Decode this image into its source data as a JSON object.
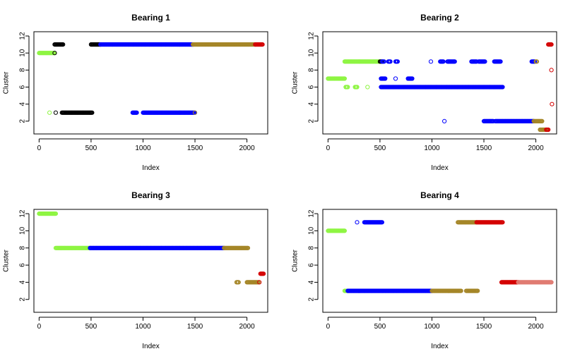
{
  "chart_data": [
    {
      "type": "scatter",
      "title": "Bearing 1",
      "xlabel": "Index",
      "ylabel": "Cluster",
      "xlim": [
        -50,
        2200
      ],
      "ylim": [
        0.5,
        12.5
      ],
      "xticks": [
        0,
        500,
        1000,
        1500,
        2000
      ],
      "yticks": [
        2,
        4,
        6,
        8,
        10,
        12
      ],
      "grid": false,
      "legend": "none",
      "runs": [
        {
          "color": "#8EF542",
          "y": 10,
          "x": [
            0,
            150
          ]
        },
        {
          "color": "#8EF542",
          "y": 3,
          "x": [
            100,
            100
          ]
        },
        {
          "color": "#000000",
          "y": 11,
          "x": [
            150,
            230
          ]
        },
        {
          "color": "#000000",
          "y": 10,
          "x": [
            150,
            150
          ]
        },
        {
          "color": "#000000",
          "y": 3,
          "x": [
            160,
            160
          ]
        },
        {
          "color": "#000000",
          "y": 3,
          "x": [
            220,
            510
          ]
        },
        {
          "color": "#000000",
          "y": 11,
          "x": [
            500,
            590
          ]
        },
        {
          "color": "#0000FF",
          "y": 11,
          "x": [
            590,
            1480
          ]
        },
        {
          "color": "#0000FF",
          "y": 3,
          "x": [
            900,
            940
          ]
        },
        {
          "color": "#0000FF",
          "y": 3,
          "x": [
            1000,
            1500
          ]
        },
        {
          "color": "#A58628",
          "y": 3,
          "x": [
            1500,
            1500
          ]
        },
        {
          "color": "#A58628",
          "y": 11,
          "x": [
            1480,
            2080
          ]
        },
        {
          "color": "#D40000",
          "y": 11,
          "x": [
            2080,
            2150
          ]
        }
      ]
    },
    {
      "type": "scatter",
      "title": "Bearing 2",
      "xlabel": "Index",
      "ylabel": "Cluster",
      "xlim": [
        -50,
        2200
      ],
      "ylim": [
        0.5,
        12.5
      ],
      "xticks": [
        0,
        500,
        1000,
        1500,
        2000
      ],
      "yticks": [
        2,
        4,
        6,
        8,
        10,
        12
      ],
      "grid": false,
      "legend": "none",
      "runs": [
        {
          "color": "#8EF542",
          "y": 7,
          "x": [
            0,
            160
          ]
        },
        {
          "color": "#8EF542",
          "y": 9,
          "x": [
            160,
            500
          ]
        },
        {
          "color": "#8EF542",
          "y": 6,
          "x": [
            170,
            190
          ]
        },
        {
          "color": "#8EF542",
          "y": 6,
          "x": [
            260,
            280
          ]
        },
        {
          "color": "#8EF542",
          "y": 6,
          "x": [
            380,
            380
          ]
        },
        {
          "color": "#000000",
          "y": 9,
          "x": [
            500,
            520
          ]
        },
        {
          "color": "#0000FF",
          "y": 9,
          "x": [
            520,
            540
          ]
        },
        {
          "color": "#0000FF",
          "y": 7,
          "x": [
            510,
            550
          ]
        },
        {
          "color": "#0000FF",
          "y": 6,
          "x": [
            510,
            1680
          ]
        },
        {
          "color": "#0000FF",
          "y": 9,
          "x": [
            580,
            600
          ]
        },
        {
          "color": "#0000FF",
          "y": 9,
          "x": [
            650,
            670
          ]
        },
        {
          "color": "#0000FF",
          "y": 7,
          "x": [
            650,
            650
          ]
        },
        {
          "color": "#0000FF",
          "y": 7,
          "x": [
            770,
            810
          ]
        },
        {
          "color": "#0000FF",
          "y": 9,
          "x": [
            990,
            990
          ]
        },
        {
          "color": "#0000FF",
          "y": 9,
          "x": [
            1080,
            1110
          ]
        },
        {
          "color": "#0000FF",
          "y": 9,
          "x": [
            1150,
            1220
          ]
        },
        {
          "color": "#0000FF",
          "y": 9,
          "x": [
            1380,
            1430
          ]
        },
        {
          "color": "#0000FF",
          "y": 9,
          "x": [
            1450,
            1510
          ]
        },
        {
          "color": "#0000FF",
          "y": 9,
          "x": [
            1600,
            1660
          ]
        },
        {
          "color": "#0000FF",
          "y": 2,
          "x": [
            1120,
            1120
          ]
        },
        {
          "color": "#0000FF",
          "y": 2,
          "x": [
            1500,
            1590
          ]
        },
        {
          "color": "#0000FF",
          "y": 2,
          "x": [
            1610,
            1980
          ]
        },
        {
          "color": "#0000FF",
          "y": 9,
          "x": [
            1960,
            1990
          ]
        },
        {
          "color": "#A58628",
          "y": 9,
          "x": [
            2000,
            2010
          ]
        },
        {
          "color": "#A58628",
          "y": 2,
          "x": [
            1980,
            2060
          ]
        },
        {
          "color": "#A58628",
          "y": 1,
          "x": [
            2040,
            2100
          ]
        },
        {
          "color": "#D40000",
          "y": 1,
          "x": [
            2100,
            2120
          ]
        },
        {
          "color": "#D40000",
          "y": 11,
          "x": [
            2120,
            2150
          ]
        },
        {
          "color": "#D40000",
          "y": 8,
          "x": [
            2150,
            2150
          ]
        },
        {
          "color": "#D40000",
          "y": 4,
          "x": [
            2155,
            2155
          ]
        }
      ]
    },
    {
      "type": "scatter",
      "title": "Bearing 3",
      "xlabel": "Index",
      "ylabel": "Cluster",
      "xlim": [
        -50,
        2200
      ],
      "ylim": [
        0.5,
        12.5
      ],
      "xticks": [
        0,
        500,
        1000,
        1500,
        2000
      ],
      "yticks": [
        2,
        4,
        6,
        8,
        10,
        12
      ],
      "grid": false,
      "legend": "none",
      "runs": [
        {
          "color": "#8EF542",
          "y": 12,
          "x": [
            0,
            160
          ]
        },
        {
          "color": "#8EF542",
          "y": 8,
          "x": [
            160,
            490
          ]
        },
        {
          "color": "#0000FF",
          "y": 8,
          "x": [
            490,
            1780
          ]
        },
        {
          "color": "#A58628",
          "y": 8,
          "x": [
            1780,
            2010
          ]
        },
        {
          "color": "#A58628",
          "y": 4,
          "x": [
            1900,
            1920
          ]
        },
        {
          "color": "#A58628",
          "y": 4,
          "x": [
            2000,
            2110
          ]
        },
        {
          "color": "#D40000",
          "y": 4,
          "x": [
            2120,
            2120
          ]
        },
        {
          "color": "#D40000",
          "y": 5,
          "x": [
            2130,
            2160
          ]
        }
      ]
    },
    {
      "type": "scatter",
      "title": "Bearing 4",
      "xlabel": "Index",
      "ylabel": "Cluster",
      "xlim": [
        -50,
        2200
      ],
      "ylim": [
        0.5,
        12.5
      ],
      "xticks": [
        0,
        500,
        1000,
        1500,
        2000
      ],
      "yticks": [
        2,
        4,
        6,
        8,
        10,
        12
      ],
      "grid": false,
      "legend": "none",
      "runs": [
        {
          "color": "#8EF542",
          "y": 10,
          "x": [
            0,
            160
          ]
        },
        {
          "color": "#8EF542",
          "y": 3,
          "x": [
            160,
            190
          ]
        },
        {
          "color": "#0000FF",
          "y": 11,
          "x": [
            280,
            280
          ]
        },
        {
          "color": "#0000FF",
          "y": 11,
          "x": [
            350,
            520
          ]
        },
        {
          "color": "#0000FF",
          "y": 3,
          "x": [
            190,
            1000
          ]
        },
        {
          "color": "#A58628",
          "y": 3,
          "x": [
            1000,
            1280
          ]
        },
        {
          "color": "#A58628",
          "y": 3,
          "x": [
            1330,
            1440
          ]
        },
        {
          "color": "#A58628",
          "y": 11,
          "x": [
            1250,
            1430
          ]
        },
        {
          "color": "#D40000",
          "y": 11,
          "x": [
            1430,
            1680
          ]
        },
        {
          "color": "#D40000",
          "y": 4,
          "x": [
            1670,
            1830
          ]
        },
        {
          "color": "#E07B72",
          "y": 4,
          "x": [
            1830,
            2150
          ]
        }
      ]
    }
  ]
}
